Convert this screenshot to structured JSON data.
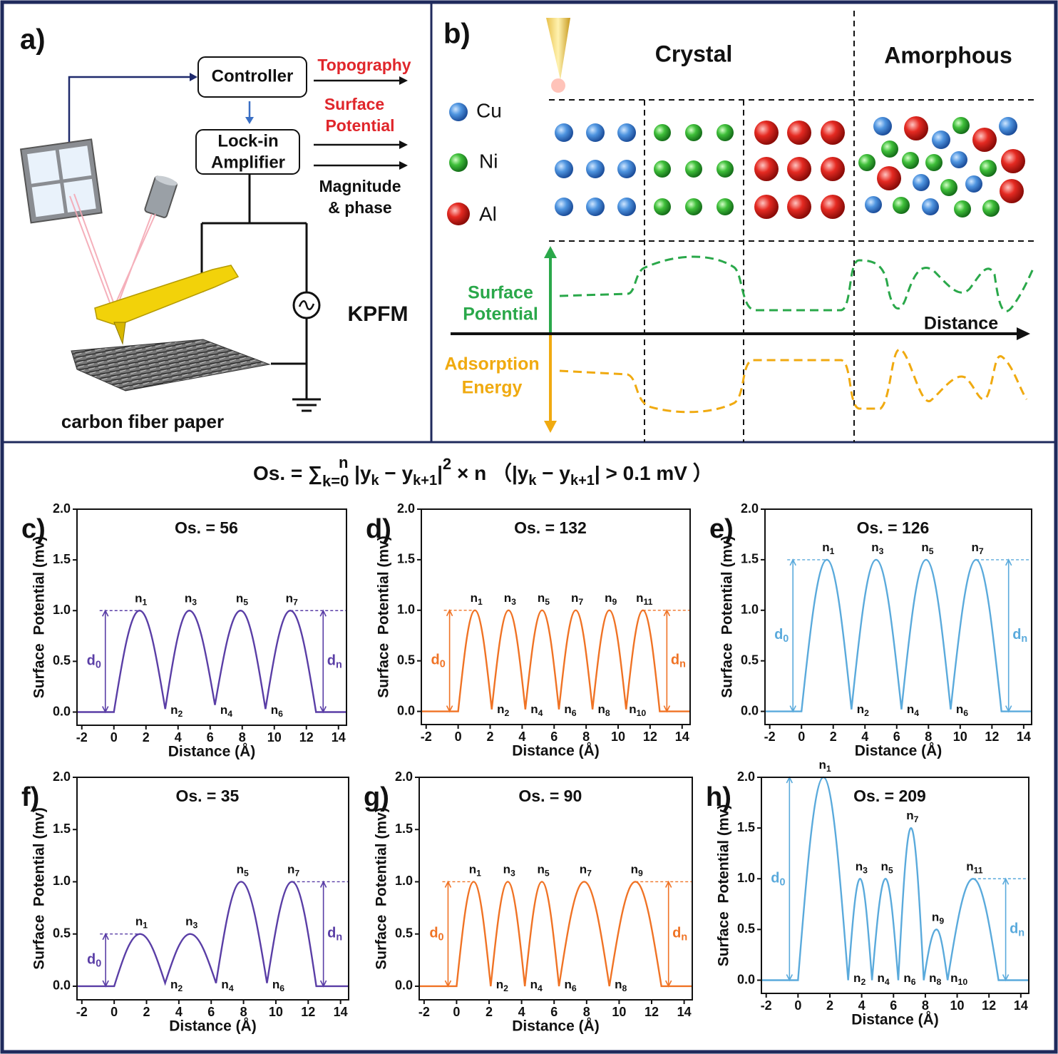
{
  "panel_a": {
    "label": "a)",
    "controller": "Controller",
    "lockin": [
      "Lock-in",
      "Amplifier"
    ],
    "topography": "Topography",
    "surface_potential": [
      "Surface",
      "Potential"
    ],
    "magnitude_phase": [
      "Magnitude",
      "& phase"
    ],
    "method": "KPFM",
    "substrate": "carbon fiber paper"
  },
  "panel_b": {
    "label": "b)",
    "regions": [
      "Crystal",
      "Amorphous"
    ],
    "elements": [
      "Cu",
      "Ni",
      "Al"
    ],
    "axis_up": [
      "Surface",
      "Potential"
    ],
    "axis_down": [
      "Adsorption",
      "Energy"
    ],
    "axis_x": "Distance"
  },
  "equation": {
    "sum_top": "n",
    "parts": [
      "Os. = ∑",
      "k=0",
      " |y",
      "k",
      " − y",
      "k+1",
      "|",
      "2",
      " × n     （|y",
      "k",
      " − y",
      "k+1",
      "| > 0.1 mV ）"
    ]
  },
  "chart_data": [
    {
      "type": "line",
      "label": "c)",
      "annotation": "Os. = 56",
      "xlabel": "Distance (Å)",
      "ylabel": "Surface  Potential (mv)",
      "xlim": [
        -2.3,
        14.5
      ],
      "ylim": [
        -0.13,
        2.0
      ],
      "xticks": [
        -2,
        0,
        2,
        4,
        6,
        8,
        10,
        12,
        14
      ],
      "yticks": [
        {
          "value": 0,
          "label": "0.0"
        },
        {
          "value": 0.5,
          "label": "0.5"
        },
        {
          "value": 1,
          "label": "1.0"
        },
        {
          "value": 1.5,
          "label": "1.5"
        },
        {
          "value": 2,
          "label": "2.0"
        }
      ],
      "color": "#5a3ea6",
      "x": [
        -2.3,
        0,
        1.6,
        3.2,
        4.7,
        6.3,
        7.9,
        9.45,
        11,
        12.6,
        14.5
      ],
      "values": [
        0,
        0,
        1,
        0.03,
        1,
        0.07,
        1,
        0.03,
        1,
        0,
        0
      ],
      "peak_labels": [
        {
          "text": "n",
          "sub": "1"
        },
        {
          "text": "n",
          "sub": "3"
        },
        {
          "text": "n",
          "sub": "5"
        },
        {
          "text": "n",
          "sub": "7"
        }
      ],
      "trough_labels": [
        {
          "text": "n",
          "sub": "2"
        },
        {
          "text": "n",
          "sub": "4"
        },
        {
          "text": "n",
          "sub": "6"
        }
      ],
      "d_start": {
        "text": "d",
        "sub": "0"
      },
      "d_end": {
        "text": "d",
        "sub": "n"
      }
    },
    {
      "type": "line",
      "label": "d)",
      "annotation": "Os. = 132",
      "xlabel": "Distance (Å)",
      "ylabel": "Surface  Potential (mv)",
      "xlim": [
        -2.3,
        14.5
      ],
      "ylim": [
        -0.13,
        2.0
      ],
      "xticks": [
        -2,
        0,
        2,
        4,
        6,
        8,
        10,
        12,
        14
      ],
      "yticks": [
        {
          "value": 0,
          "label": "0.0"
        },
        {
          "value": 0.5,
          "label": "0.5"
        },
        {
          "value": 1,
          "label": "1.0"
        },
        {
          "value": 1.5,
          "label": "1.5"
        },
        {
          "value": 2,
          "label": "2.0"
        }
      ],
      "color": "#f07325",
      "x": [
        -2.3,
        0,
        1.05,
        2.1,
        3.15,
        4.2,
        5.25,
        6.3,
        7.35,
        8.4,
        9.45,
        10.5,
        11.55,
        12.6,
        14.5
      ],
      "values": [
        0,
        0,
        1,
        0.02,
        1,
        0.02,
        1,
        0.02,
        1,
        0.02,
        1,
        0.02,
        1,
        0,
        0
      ],
      "peak_labels": [
        {
          "text": "n",
          "sub": "1"
        },
        {
          "text": "n",
          "sub": "3"
        },
        {
          "text": "n",
          "sub": "5"
        },
        {
          "text": "n",
          "sub": "7"
        },
        {
          "text": "n",
          "sub": "9"
        },
        {
          "text": "n",
          "sub": "11"
        }
      ],
      "trough_labels": [
        {
          "text": "n",
          "sub": "2"
        },
        {
          "text": "n",
          "sub": "4"
        },
        {
          "text": "n",
          "sub": "6"
        },
        {
          "text": "n",
          "sub": "8"
        },
        {
          "text": "n",
          "sub": "10"
        }
      ],
      "d_start": {
        "text": "d",
        "sub": "0"
      },
      "d_end": {
        "text": "d",
        "sub": "n"
      }
    },
    {
      "type": "line",
      "label": "e)",
      "annotation": "Os. = 126",
      "xlabel": "Distance (Å)",
      "ylabel": "Surface  Potential (mv)",
      "xlim": [
        -2.3,
        14.5
      ],
      "ylim": [
        -0.13,
        2.0
      ],
      "xticks": [
        -2,
        0,
        2,
        4,
        6,
        8,
        10,
        12,
        14
      ],
      "yticks": [
        {
          "value": 0,
          "label": "0.0"
        },
        {
          "value": 0.5,
          "label": "0.5"
        },
        {
          "value": 1,
          "label": "1.0"
        },
        {
          "value": 1.5,
          "label": "1.5"
        },
        {
          "value": 2,
          "label": "2.0"
        }
      ],
      "color": "#5aaadc",
      "x": [
        -2.3,
        0,
        1.6,
        3.15,
        4.7,
        6.3,
        7.85,
        9.4,
        11,
        12.6,
        14.5
      ],
      "values": [
        0,
        0,
        1.5,
        0.02,
        1.5,
        0.02,
        1.5,
        0.02,
        1.5,
        0,
        0
      ],
      "peak_labels": [
        {
          "text": "n",
          "sub": "1"
        },
        {
          "text": "n",
          "sub": "3"
        },
        {
          "text": "n",
          "sub": "5"
        },
        {
          "text": "n",
          "sub": "7"
        }
      ],
      "trough_labels": [
        {
          "text": "n",
          "sub": "2"
        },
        {
          "text": "n",
          "sub": "4"
        },
        {
          "text": "n",
          "sub": "6"
        }
      ],
      "d_start": {
        "text": "d",
        "sub": "0"
      },
      "d_end": {
        "text": "d",
        "sub": "n"
      }
    },
    {
      "type": "line",
      "label": "f)",
      "annotation": "Os. = 35",
      "xlabel": "Distance (Å)",
      "ylabel": "Surface  Potential (mv)",
      "xlim": [
        -2.3,
        14.5
      ],
      "ylim": [
        -0.13,
        2.0
      ],
      "xticks": [
        -2,
        0,
        2,
        4,
        6,
        8,
        10,
        12,
        14
      ],
      "yticks": [
        {
          "value": 0,
          "label": "0.0"
        },
        {
          "value": 0.5,
          "label": "0.5"
        },
        {
          "value": 1,
          "label": "1.0"
        },
        {
          "value": 1.5,
          "label": "1.5"
        },
        {
          "value": 2,
          "label": "2.0"
        }
      ],
      "color": "#5a3ea6",
      "x": [
        -2.3,
        0,
        1.6,
        3.15,
        4.7,
        6.3,
        7.85,
        9.45,
        11,
        12.5,
        14.5
      ],
      "values": [
        0,
        0,
        0.5,
        0.03,
        0.5,
        0.03,
        1,
        0.03,
        1,
        0,
        0
      ],
      "peak_labels": [
        {
          "text": "n",
          "sub": "1"
        },
        {
          "text": "n",
          "sub": "3"
        },
        {
          "text": "n",
          "sub": "5"
        },
        {
          "text": "n",
          "sub": "7"
        }
      ],
      "trough_labels": [
        {
          "text": "n",
          "sub": "2"
        },
        {
          "text": "n",
          "sub": "4"
        },
        {
          "text": "n",
          "sub": "6"
        }
      ],
      "d_start": {
        "text": "d",
        "sub": "0"
      },
      "d_end": {
        "text": "d",
        "sub": "n"
      }
    },
    {
      "type": "line",
      "label": "g)",
      "annotation": "Os. = 90",
      "xlabel": "Distance (Å)",
      "ylabel": "Surface  Potential (mv)",
      "xlim": [
        -2.3,
        14.5
      ],
      "ylim": [
        -0.13,
        2.0
      ],
      "xticks": [
        -2,
        0,
        2,
        4,
        6,
        8,
        10,
        12,
        14
      ],
      "yticks": [
        {
          "value": 0,
          "label": "0.0"
        },
        {
          "value": 0.5,
          "label": "0.5"
        },
        {
          "value": 1,
          "label": "1.0"
        },
        {
          "value": 1.5,
          "label": "1.5"
        },
        {
          "value": 2,
          "label": "2.0"
        }
      ],
      "color": "#f07325",
      "x": [
        -2.3,
        0,
        1.05,
        2.1,
        3.15,
        4.2,
        5.25,
        6.3,
        7.85,
        9.4,
        11,
        12.6,
        14.5
      ],
      "values": [
        0,
        0,
        1,
        0,
        1,
        0,
        1,
        0,
        1,
        0,
        1,
        0,
        0
      ],
      "peak_labels": [
        {
          "text": "n",
          "sub": "1"
        },
        {
          "text": "n",
          "sub": "3"
        },
        {
          "text": "n",
          "sub": "5"
        },
        {
          "text": "n",
          "sub": "7"
        },
        {
          "text": "n",
          "sub": "9"
        }
      ],
      "trough_labels": [
        {
          "text": "n",
          "sub": "2"
        },
        {
          "text": "n",
          "sub": "4"
        },
        {
          "text": "n",
          "sub": "6"
        },
        {
          "text": "n",
          "sub": "8"
        }
      ],
      "d_start": {
        "text": "d",
        "sub": "0"
      },
      "d_end": {
        "text": "d",
        "sub": "n"
      }
    },
    {
      "type": "line",
      "label": "h)",
      "annotation": "Os. = 209",
      "xlabel": "Distance (Å)",
      "ylabel": "Surface  Potential (mv)",
      "xlim": [
        -2.3,
        14.5
      ],
      "ylim": [
        -0.13,
        2.0
      ],
      "xticks": [
        -2,
        0,
        2,
        4,
        6,
        8,
        10,
        12,
        14
      ],
      "yticks": [
        {
          "value": 0,
          "label": "0.0"
        },
        {
          "value": 0.5,
          "label": "0.5"
        },
        {
          "value": 1,
          "label": "1.0"
        },
        {
          "value": 1.5,
          "label": "1.5"
        },
        {
          "value": 2,
          "label": "2.0"
        }
      ],
      "color": "#5aaadc",
      "x": [
        -2.3,
        0,
        1.6,
        3.15,
        3.9,
        4.65,
        5.5,
        6.3,
        7.1,
        7.9,
        8.7,
        9.4,
        11,
        12.6,
        14.5
      ],
      "values": [
        0,
        0,
        2,
        0,
        1,
        0,
        1,
        0,
        1.5,
        0,
        0.5,
        0,
        1,
        0,
        0
      ],
      "peak_labels": [
        {
          "text": "n",
          "sub": "1"
        },
        {
          "text": "n",
          "sub": "3"
        },
        {
          "text": "n",
          "sub": "5"
        },
        {
          "text": "n",
          "sub": "7"
        },
        {
          "text": "n",
          "sub": "9"
        },
        {
          "text": "n",
          "sub": "11"
        }
      ],
      "trough_labels": [
        {
          "text": "n",
          "sub": "2"
        },
        {
          "text": "n",
          "sub": "4"
        },
        {
          "text": "n",
          "sub": "6"
        },
        {
          "text": "n",
          "sub": "8"
        },
        {
          "text": "n",
          "sub": "10"
        }
      ],
      "d_start": {
        "text": "d",
        "sub": "0"
      },
      "d_end": {
        "text": "d",
        "sub": "n"
      }
    }
  ]
}
